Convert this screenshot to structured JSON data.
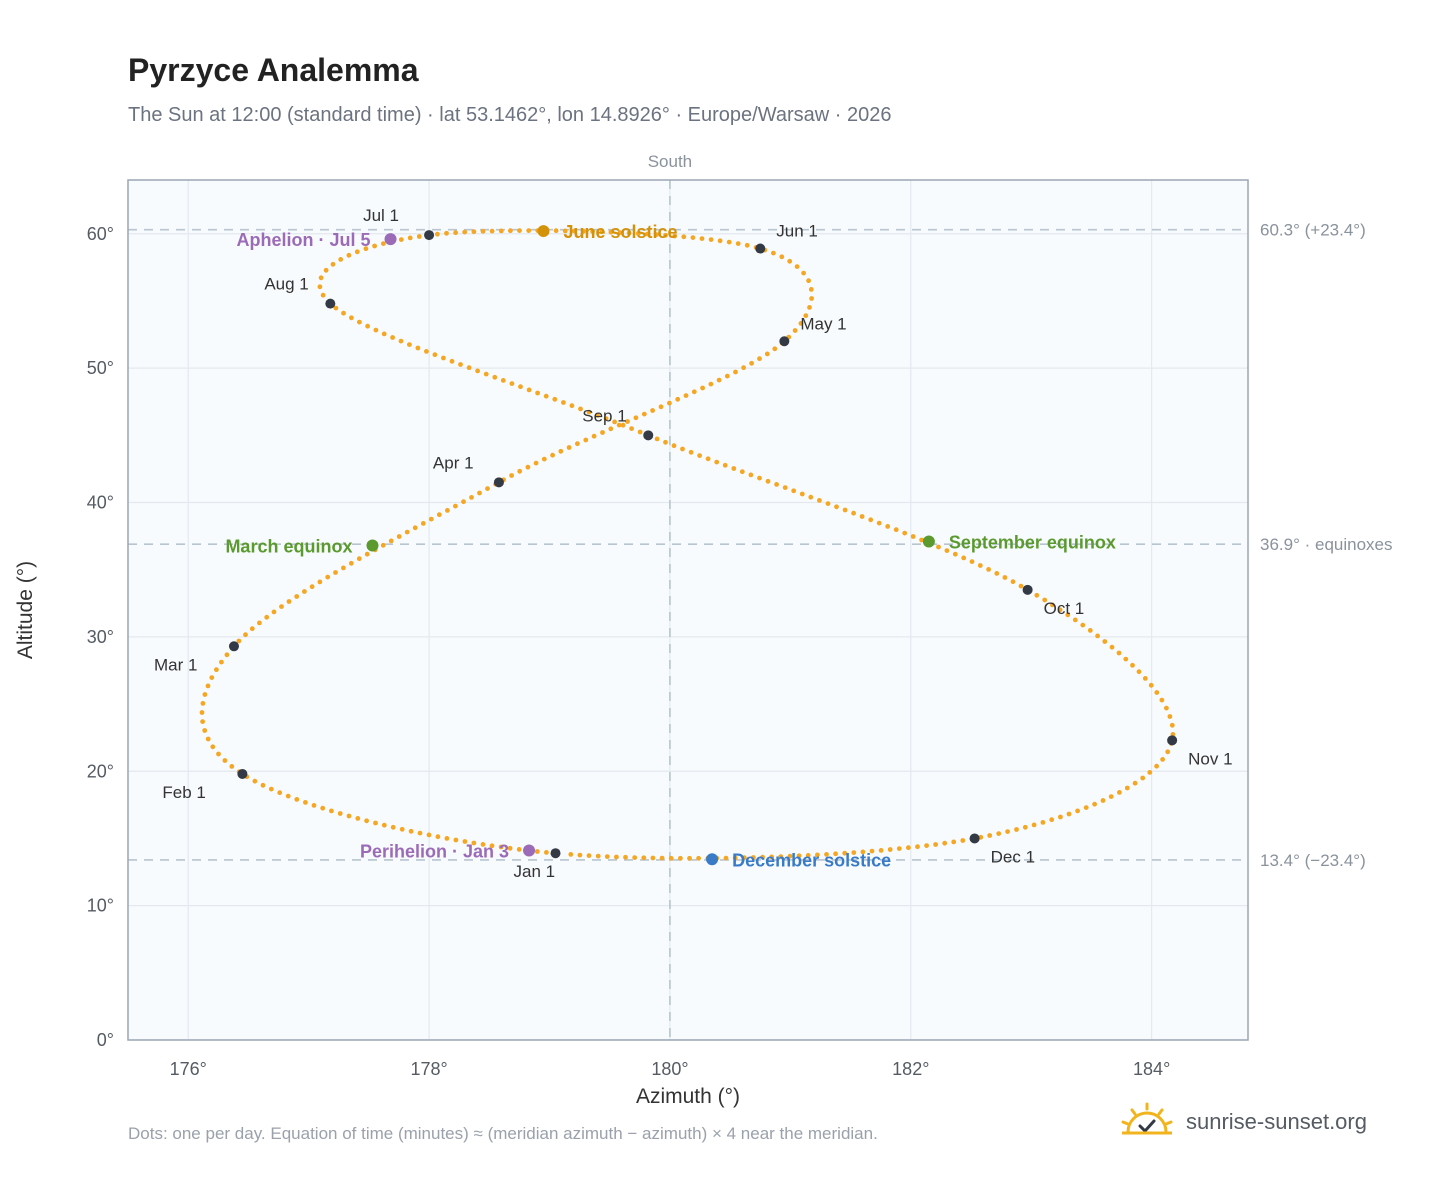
{
  "title": "Pyrzyce Analemma",
  "subtitle": "The Sun at 12:00 (standard time) · lat 53.1462°, lon 14.8926° · Europe/Warsaw · 2026",
  "footnote": "Dots: one per day. Equation of time (minutes) ≈ (meridian azimuth − azimuth) × 4 near the meridian.",
  "brand": {
    "name": "sunrise-sunset.org",
    "icon": "sun-check-icon",
    "color": "#f2b41c"
  },
  "chart_data": {
    "type": "scatter",
    "xlabel": "Azimuth (°)",
    "ylabel": "Altitude (°)",
    "xlim": [
      175.5,
      184.8
    ],
    "ylim": [
      0,
      64
    ],
    "x_ticks": [
      176,
      178,
      180,
      182,
      184
    ],
    "x_tick_labels": [
      "176°",
      "178°",
      "180°",
      "182°",
      "184°"
    ],
    "y_ticks": [
      0,
      10,
      20,
      30,
      40,
      50,
      60
    ],
    "y_tick_labels": [
      "0°",
      "10°",
      "20°",
      "30°",
      "40°",
      "50°",
      "60°"
    ],
    "grid": true,
    "meridian": {
      "azimuth": 180,
      "label": "South"
    },
    "reference_lines": [
      {
        "altitude": 60.3,
        "label": "60.3° (+23.4°)"
      },
      {
        "altitude": 36.9,
        "label": "36.9° · equinoxes"
      },
      {
        "altitude": 13.4,
        "label": "13.4° (−23.4°)"
      }
    ],
    "colors": {
      "daily": "#f5a623",
      "month": "#333a45",
      "solstice_june": "#d4920a",
      "solstice_dec": "#3a7bc8",
      "equinox": "#5a9a2f",
      "apsis": "#9b6bb8",
      "refline": "#b8c4cf",
      "frame": "#9aa6b4",
      "plotbg": "#f8fbfd",
      "grid": "#e3e9ef"
    },
    "month_markers": [
      {
        "label": "Jan 1",
        "az": 179.05,
        "alt": 13.9,
        "anchor": "below"
      },
      {
        "label": "Feb 1",
        "az": 176.45,
        "alt": 19.8,
        "anchor": "below-left"
      },
      {
        "label": "Mar 1",
        "az": 176.38,
        "alt": 29.3,
        "anchor": "below-left"
      },
      {
        "label": "Apr 1",
        "az": 178.58,
        "alt": 41.5,
        "anchor": "above-left"
      },
      {
        "label": "May 1",
        "az": 180.95,
        "alt": 52.0,
        "anchor": "above-right"
      },
      {
        "label": "Jun 1",
        "az": 180.75,
        "alt": 58.9,
        "anchor": "above-right"
      },
      {
        "label": "Jul 1",
        "az": 178.0,
        "alt": 59.9,
        "anchor": "above-left"
      },
      {
        "label": "Aug 1",
        "az": 177.18,
        "alt": 54.8,
        "anchor": "above-left"
      },
      {
        "label": "Sep 1",
        "az": 179.82,
        "alt": 45.0,
        "anchor": "above-left"
      },
      {
        "label": "Oct 1",
        "az": 182.97,
        "alt": 33.5,
        "anchor": "below-right"
      },
      {
        "label": "Nov 1",
        "az": 184.17,
        "alt": 22.3,
        "anchor": "below-right"
      },
      {
        "label": "Dec 1",
        "az": 182.53,
        "alt": 15.0,
        "anchor": "below-right"
      }
    ],
    "events": [
      {
        "label": "June solstice",
        "az": 178.95,
        "alt": 60.2,
        "kind": "solstice_june",
        "anchor": "right"
      },
      {
        "label": "December solstice",
        "az": 180.35,
        "alt": 13.45,
        "kind": "solstice_dec",
        "anchor": "right"
      },
      {
        "label": "March equinox",
        "az": 177.53,
        "alt": 36.8,
        "kind": "equinox",
        "anchor": "left"
      },
      {
        "label": "September equinox",
        "az": 182.15,
        "alt": 37.1,
        "kind": "equinox",
        "anchor": "right"
      },
      {
        "label": "Aphelion · Jul 5",
        "az": 177.68,
        "alt": 59.6,
        "kind": "apsis",
        "anchor": "left"
      },
      {
        "label": "Perihelion · Jan 3",
        "az": 178.83,
        "alt": 14.1,
        "kind": "apsis",
        "anchor": "left"
      }
    ]
  }
}
